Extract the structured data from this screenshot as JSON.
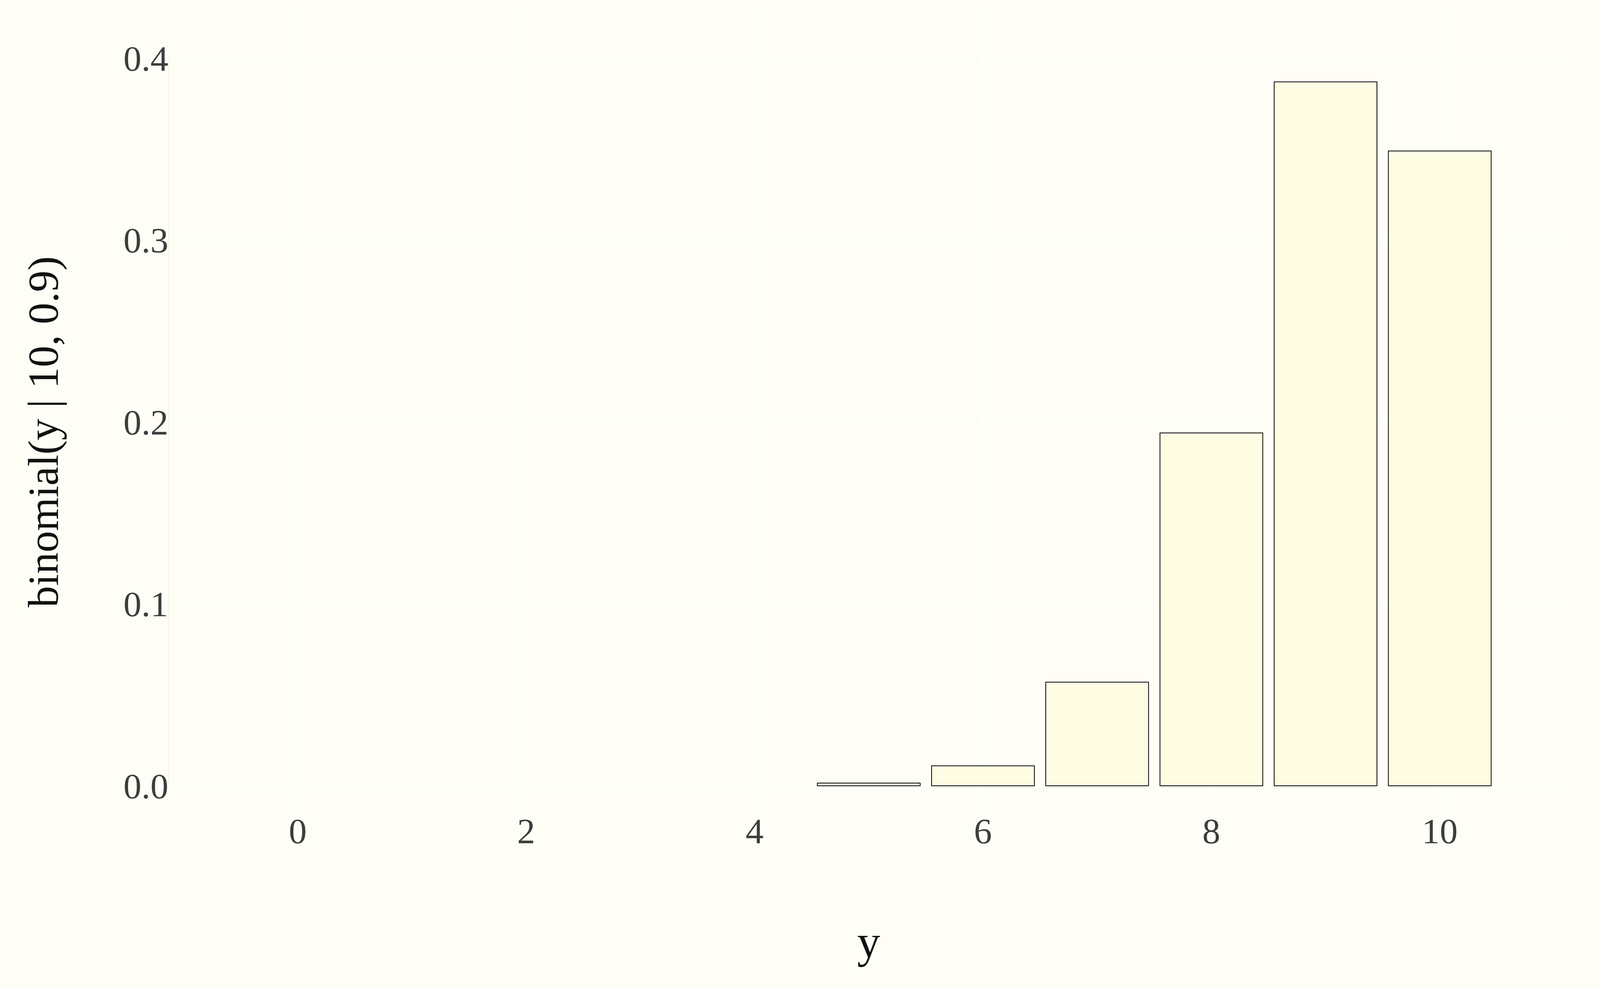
{
  "chart_data": {
    "type": "bar",
    "x_label": "y",
    "y_label": "binomial(y | 10, 0.9)",
    "categories": [
      "0",
      null,
      "2",
      null,
      "4",
      null,
      "6",
      null,
      "8",
      null,
      "10"
    ],
    "values": [
      0,
      0,
      0,
      0,
      0,
      0.0015,
      0.011,
      0.057,
      0.194,
      0.387,
      0.349
    ],
    "color": "#fefde3",
    "ylim": [
      0,
      0.4
    ],
    "yticks": [
      {
        "value": 0,
        "label": "0.0"
      },
      0.1,
      0.2,
      0.3,
      0.4
    ],
    "grid": true
  }
}
